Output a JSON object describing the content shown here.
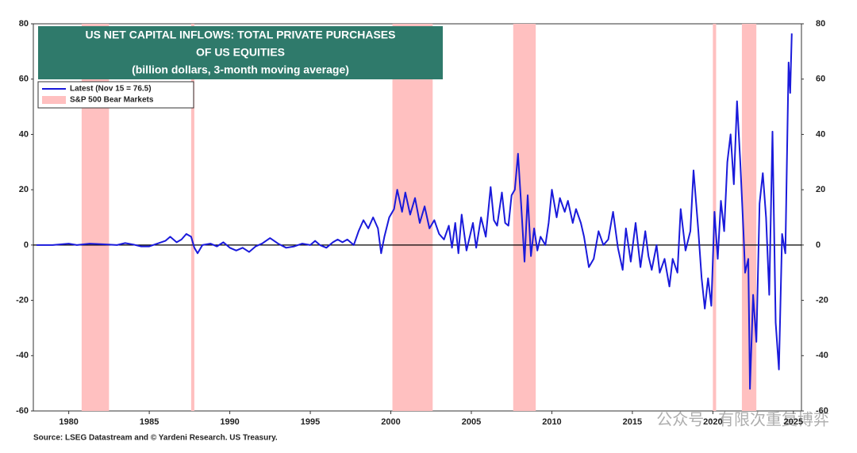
{
  "chart_data": {
    "type": "line",
    "title_lines": [
      "US NET CAPITAL INFLOWS: TOTAL PRIVATE PURCHASES",
      "OF US EQUITIES",
      "(billion dollars, 3-month moving average)"
    ],
    "source": "Source: LSEG Datastream and © Yardeni Research. US Treasury.",
    "watermark": "公众号 · 有限次重复博弈",
    "xlim": [
      1977.8,
      2025.5
    ],
    "xticks": [
      1980,
      1985,
      1990,
      1995,
      2000,
      2005,
      2010,
      2015,
      2020,
      2025
    ],
    "ylim": [
      -60,
      80
    ],
    "yticks": [
      -60,
      -40,
      -20,
      0,
      20,
      40,
      60,
      80
    ],
    "y2lim": [
      -60,
      80
    ],
    "y2ticks": [
      -60,
      -40,
      -20,
      0,
      20,
      40,
      60,
      80
    ],
    "zero_line": true,
    "legend_position": "upper left",
    "bands": {
      "name": "S&P 500 Bear Markets",
      "color": "#ffc0c0",
      "ranges": [
        [
          1980.8,
          1982.5
        ],
        [
          1987.6,
          1987.8
        ],
        [
          2000.1,
          2002.6
        ],
        [
          2007.6,
          2009.0
        ],
        [
          2020.0,
          2020.2
        ],
        [
          2021.8,
          2022.7
        ]
      ]
    },
    "series": [
      {
        "name": "Latest (Nov 15 = 76.5)",
        "color": "#1a1adb",
        "x": [
          1978.0,
          1979.0,
          1980.0,
          1980.5,
          1981.3,
          1982.0,
          1983.0,
          1983.5,
          1984.0,
          1984.5,
          1985.0,
          1985.5,
          1986.0,
          1986.3,
          1986.7,
          1987.0,
          1987.3,
          1987.6,
          1987.8,
          1988.0,
          1988.3,
          1988.8,
          1989.2,
          1989.6,
          1990.0,
          1990.4,
          1990.8,
          1991.2,
          1991.6,
          1992.0,
          1992.5,
          1993.0,
          1993.5,
          1994.0,
          1994.5,
          1995.0,
          1995.3,
          1995.6,
          1996.0,
          1996.4,
          1996.7,
          1997.0,
          1997.3,
          1997.7,
          1998.0,
          1998.3,
          1998.6,
          1998.9,
          1999.2,
          1999.4,
          1999.6,
          1999.9,
          2000.2,
          2000.4,
          2000.7,
          2000.9,
          2001.2,
          2001.5,
          2001.8,
          2002.1,
          2002.4,
          2002.7,
          2003.0,
          2003.3,
          2003.6,
          2003.8,
          2004.0,
          2004.2,
          2004.4,
          2004.7,
          2004.9,
          2005.1,
          2005.3,
          2005.6,
          2005.9,
          2006.2,
          2006.4,
          2006.6,
          2006.9,
          2007.1,
          2007.3,
          2007.5,
          2007.7,
          2007.9,
          2008.1,
          2008.3,
          2008.5,
          2008.7,
          2008.9,
          2009.1,
          2009.3,
          2009.6,
          2009.8,
          2010.0,
          2010.3,
          2010.5,
          2010.8,
          2011.0,
          2011.3,
          2011.5,
          2011.8,
          2012.0,
          2012.3,
          2012.6,
          2012.9,
          2013.2,
          2013.5,
          2013.8,
          2014.1,
          2014.4,
          2014.6,
          2014.9,
          2015.2,
          2015.5,
          2015.8,
          2016.0,
          2016.2,
          2016.5,
          2016.7,
          2017.0,
          2017.3,
          2017.5,
          2017.8,
          2018.0,
          2018.3,
          2018.6,
          2018.8,
          2019.1,
          2019.3,
          2019.5,
          2019.7,
          2019.9,
          2020.1,
          2020.3,
          2020.5,
          2020.7,
          2020.9,
          2021.1,
          2021.3,
          2021.5,
          2021.7,
          2021.9,
          2022.0,
          2022.2,
          2022.3,
          2022.5,
          2022.7,
          2022.9,
          2023.1,
          2023.3,
          2023.5,
          2023.7,
          2023.9,
          2024.1,
          2024.3,
          2024.5,
          2024.7,
          2024.8,
          2024.9
        ],
        "values": [
          0,
          0,
          0.5,
          0,
          0.5,
          0.3,
          0,
          0.7,
          0.2,
          -0.5,
          -0.5,
          0.5,
          1.5,
          3,
          1,
          2,
          4,
          3,
          -1,
          -3,
          0,
          0.5,
          -0.5,
          1,
          -1,
          -2,
          -1,
          -2.5,
          -0.5,
          0.5,
          2.5,
          0.5,
          -1,
          -0.5,
          0.5,
          0,
          1.5,
          0,
          -1,
          1,
          2,
          1,
          2,
          0,
          5,
          9,
          6,
          10,
          6,
          -3,
          3,
          10,
          13,
          20,
          12,
          19,
          11,
          17,
          8,
          14,
          6,
          9,
          4,
          2,
          7,
          -1,
          8,
          -3,
          11,
          -2,
          3,
          8,
          -1,
          10,
          3,
          21,
          9,
          7,
          19,
          8,
          7,
          18,
          20,
          33,
          14,
          -6,
          18,
          -4,
          6,
          -2,
          3,
          0,
          8,
          20,
          10,
          17,
          12,
          16,
          8,
          13,
          8,
          3,
          -8,
          -5,
          5,
          0,
          2,
          12,
          -1,
          -9,
          6,
          -6,
          8,
          -8,
          5,
          -4,
          -9,
          0,
          -10,
          -5,
          -15,
          -5,
          -10,
          13,
          -2,
          5,
          27,
          5,
          -12,
          -23,
          -12,
          -22,
          12,
          -5,
          16,
          5,
          30,
          40,
          22,
          52,
          30,
          5,
          -10,
          -5,
          -52,
          -18,
          -35,
          15,
          26,
          10,
          -18,
          41,
          -28,
          -45,
          4,
          -3,
          66,
          55,
          76.5
        ]
      }
    ]
  }
}
